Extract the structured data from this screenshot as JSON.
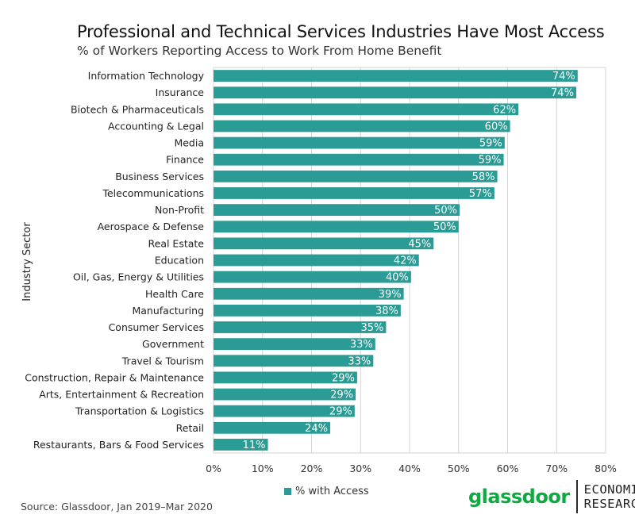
{
  "chart_data": {
    "type": "bar",
    "orientation": "horizontal",
    "title": "Professional and Technical Services Industries Have Most Access",
    "subtitle": "% of Workers Reporting Access to Work From Home Benefit",
    "ylabel": "Industry Sector",
    "xlabel": "",
    "xlim": [
      0,
      80
    ],
    "xticks": [
      "0%",
      "10%",
      "20%",
      "30%",
      "40%",
      "50%",
      "60%",
      "70%",
      "80%"
    ],
    "grid": "vertical",
    "legend": "bottom",
    "categories": [
      "Information Technology",
      "Insurance",
      "Biotech & Pharmaceuticals",
      "Accounting & Legal",
      "Media",
      "Finance",
      "Business Services",
      "Telecommunications",
      "Non-Profit",
      "Aerospace & Defense",
      "Real Estate",
      "Education",
      "Oil, Gas, Energy & Utilities",
      "Health Care",
      "Manufacturing",
      "Consumer Services",
      "Government",
      "Travel & Tourism",
      "Construction, Repair & Maintenance",
      "Arts, Entertainment & Recreation",
      "Transportation & Logistics",
      "Retail",
      "Restaurants, Bars & Food Services"
    ],
    "series": [
      {
        "name": "% with Access",
        "values": [
          74.3,
          74.0,
          62.2,
          60.5,
          59.4,
          59.2,
          57.9,
          57.3,
          50.2,
          50.0,
          44.9,
          41.9,
          40.3,
          38.8,
          38.2,
          35.2,
          33.0,
          32.6,
          29.3,
          29.0,
          28.8,
          23.8,
          11.1
        ],
        "labels": [
          "74%",
          "74%",
          "62%",
          "60%",
          "59%",
          "59%",
          "58%",
          "57%",
          "50%",
          "50%",
          "45%",
          "42%",
          "40%",
          "39%",
          "38%",
          "35%",
          "33%",
          "33%",
          "29%",
          "29%",
          "29%",
          "24%",
          "11%"
        ]
      }
    ]
  },
  "footer": {
    "source": "Source: Glassdoor, Jan 2019–Mar 2020",
    "brand_name": "glassdoor",
    "brand_unit_line1": "ECONOMIC",
    "brand_unit_line2": "RESEARCH"
  },
  "colors": {
    "bar": "#2a9c95",
    "grid": "#d4d4d4",
    "brand_green": "#0caa41",
    "divider": "#2b2b2b",
    "bar_label": "#ffffff"
  }
}
